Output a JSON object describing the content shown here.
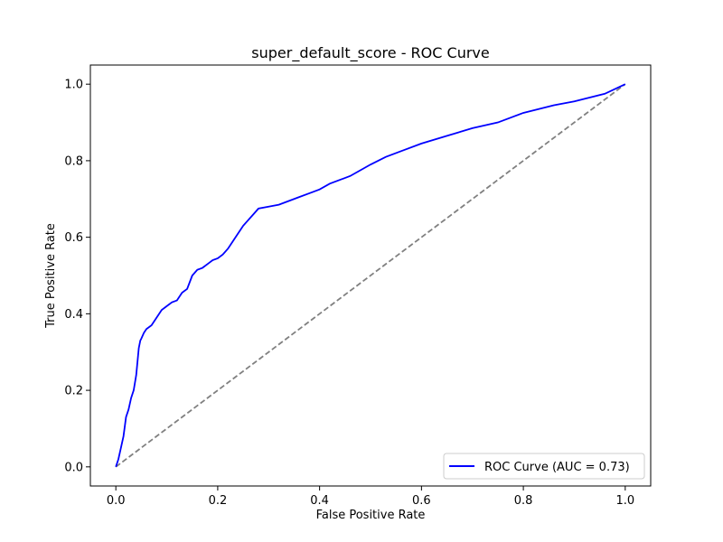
{
  "chart_data": {
    "type": "line",
    "title": "super_default_score - ROC Curve",
    "xlabel": "False Positive Rate",
    "ylabel": "True Positive Rate",
    "xlim": [
      -0.05,
      1.05
    ],
    "ylim": [
      -0.05,
      1.05
    ],
    "xticks": [
      0.0,
      0.2,
      0.4,
      0.6,
      0.8,
      1.0
    ],
    "yticks": [
      0.0,
      0.2,
      0.4,
      0.6,
      0.8,
      1.0
    ],
    "xtick_labels": [
      "0.0",
      "0.2",
      "0.4",
      "0.6",
      "0.8",
      "1.0"
    ],
    "ytick_labels": [
      "0.0",
      "0.2",
      "0.4",
      "0.6",
      "0.8",
      "1.0"
    ],
    "grid": false,
    "legend_position": "lower-right",
    "series": [
      {
        "name": "ROC Curve (AUC = 0.73)",
        "color": "#0000ff",
        "style": "solid",
        "x": [
          0.0,
          0.005,
          0.01,
          0.015,
          0.02,
          0.025,
          0.03,
          0.035,
          0.04,
          0.045,
          0.048,
          0.05,
          0.055,
          0.06,
          0.07,
          0.08,
          0.09,
          0.1,
          0.11,
          0.12,
          0.13,
          0.14,
          0.15,
          0.16,
          0.17,
          0.18,
          0.19,
          0.2,
          0.21,
          0.22,
          0.23,
          0.24,
          0.25,
          0.26,
          0.27,
          0.28,
          0.3,
          0.32,
          0.34,
          0.36,
          0.38,
          0.4,
          0.42,
          0.44,
          0.46,
          0.48,
          0.5,
          0.53,
          0.56,
          0.6,
          0.65,
          0.7,
          0.75,
          0.78,
          0.8,
          0.83,
          0.86,
          0.9,
          0.93,
          0.96,
          1.0
        ],
        "y": [
          0.0,
          0.02,
          0.05,
          0.08,
          0.13,
          0.15,
          0.18,
          0.2,
          0.24,
          0.31,
          0.33,
          0.335,
          0.35,
          0.36,
          0.37,
          0.39,
          0.41,
          0.42,
          0.43,
          0.435,
          0.455,
          0.465,
          0.5,
          0.515,
          0.52,
          0.53,
          0.54,
          0.545,
          0.555,
          0.57,
          0.59,
          0.61,
          0.63,
          0.645,
          0.66,
          0.675,
          0.68,
          0.685,
          0.695,
          0.705,
          0.715,
          0.725,
          0.74,
          0.75,
          0.76,
          0.775,
          0.79,
          0.81,
          0.825,
          0.845,
          0.865,
          0.885,
          0.9,
          0.915,
          0.925,
          0.935,
          0.945,
          0.955,
          0.965,
          0.975,
          1.0
        ]
      },
      {
        "name": "",
        "color": "#808080",
        "style": "dashed",
        "x": [
          0.0,
          1.0
        ],
        "y": [
          0.0,
          1.0
        ]
      }
    ]
  }
}
